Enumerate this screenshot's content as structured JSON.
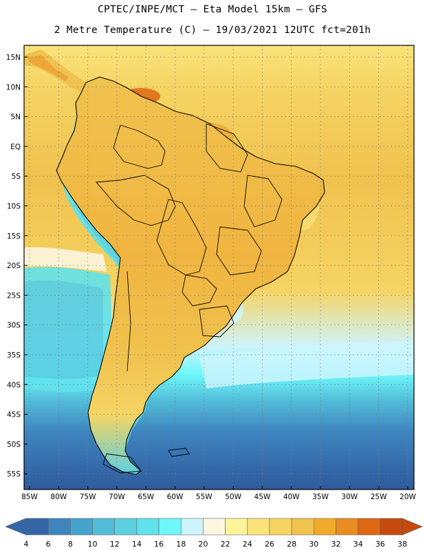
{
  "title_line1": "CPTEC/INPE/MCT –  Eta Model 15km – GFS",
  "title_line2": "2 Metre Temperature (C) – 19/03/2021 12UTC fct=201h",
  "latitude_labels": [
    "15N",
    "10N",
    "5N",
    "EQ",
    "5S",
    "10S",
    "15S",
    "20S",
    "25S",
    "30S",
    "35S",
    "40S",
    "45S",
    "50S",
    "55S"
  ],
  "longitude_labels": [
    "85W",
    "80W",
    "75W",
    "70W",
    "65W",
    "60W",
    "55W",
    "50W",
    "45W",
    "40W",
    "35W",
    "30W",
    "25W",
    "20W"
  ],
  "colorbar": {
    "values": [
      "4",
      "6",
      "8",
      "10",
      "12",
      "14",
      "16",
      "18",
      "20",
      "22",
      "24",
      "26",
      "28",
      "30",
      "32",
      "34",
      "36",
      "38"
    ],
    "colors": [
      "#3466a8",
      "#3e85bf",
      "#46a2cf",
      "#53bdd9",
      "#5ccfe0",
      "#61e1ec",
      "#6ef8fb",
      "#cdf4fd",
      "#fdf6e0",
      "#fdf39b",
      "#f9e37a",
      "#f5d463",
      "#f0c24e",
      "#f2aa2a",
      "#e98c22",
      "#de6813",
      "#c64a0e"
    ],
    "low_end_color": "#3466a8",
    "high_end_color": "#c64a0e"
  },
  "map_colors": {
    "ocean_deep": "#2f5a9c",
    "ocean_mid": "#3e85bf",
    "ocean_cool": "#53bdd9",
    "ocean_light": "#cdf4fd",
    "ocean_warm": "#f5d463",
    "ocean_tropic": "#f0c24e",
    "land_hot": "#e98c22",
    "land_warm": "#f0c24e",
    "andes": "#61e1ec"
  }
}
